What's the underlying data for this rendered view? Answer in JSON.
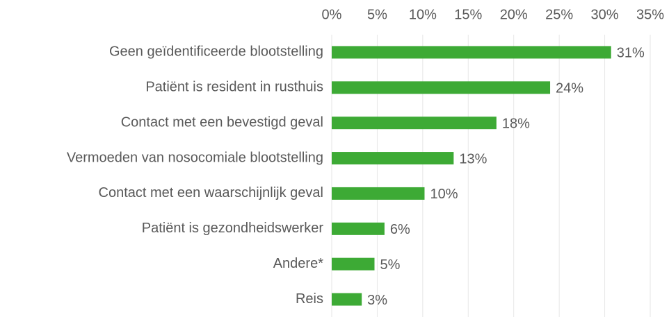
{
  "chart_data": {
    "type": "bar",
    "orientation": "horizontal",
    "categories": [
      "Geen geïdentificeerde blootstelling",
      "Patiënt is resident in rusthuis",
      "Contact met een bevestigd geval",
      "Vermoeden van nosocomiale blootstelling",
      "Contact met een waarschijnlijk geval",
      "Patiënt is gezondheidswerker",
      "Andere*",
      "Reis"
    ],
    "values": [
      30.7,
      24.0,
      18.1,
      13.4,
      10.2,
      5.8,
      4.7,
      3.3
    ],
    "value_labels": [
      "31%",
      "24%",
      "18%",
      "13%",
      "10%",
      "6%",
      "5%",
      "3%"
    ],
    "color": "#3daa35",
    "xlim": [
      0,
      35
    ],
    "xticks": [
      {
        "value": 0,
        "label": "0%"
      },
      {
        "value": 5,
        "label": "5%"
      },
      {
        "value": 10,
        "label": "10%"
      },
      {
        "value": 15,
        "label": "15%"
      },
      {
        "value": 20,
        "label": "20%"
      },
      {
        "value": 25,
        "label": "25%"
      },
      {
        "value": 30,
        "label": "30%"
      },
      {
        "value": 35,
        "label": "35%"
      }
    ],
    "grid": true
  }
}
